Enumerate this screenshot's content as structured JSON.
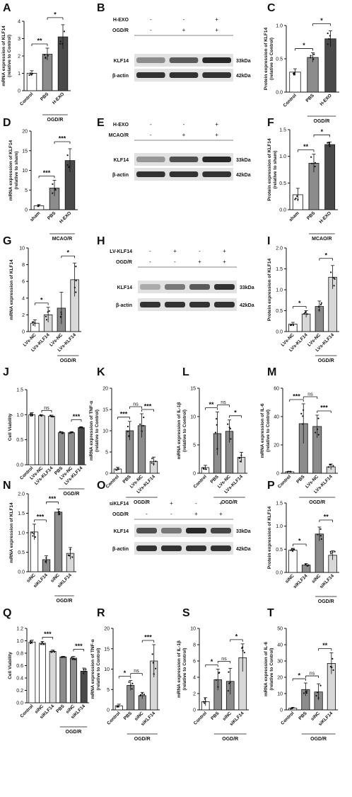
{
  "colors": {
    "black": "#111111",
    "gray": "#8c8c8c",
    "light": "#d8d8d8",
    "dark": "#4a4a4a",
    "white": "#ffffff"
  },
  "chart_data": [
    {
      "panel": "A",
      "type": "bar",
      "ylabel": "mRNA expression of KLF14 (relative to Control)",
      "ylim": [
        0,
        4
      ],
      "yticks": [
        "0",
        "1",
        "2",
        "3",
        "4"
      ],
      "categories": [
        "Control",
        "PBS",
        "H-EXO"
      ],
      "values": [
        1.0,
        2.1,
        3.1
      ],
      "errors": [
        0.15,
        0.35,
        0.7
      ],
      "fills": [
        "white",
        "gray",
        "dark"
      ],
      "sig": [
        {
          "a": 0,
          "b": 1,
          "label": "**"
        },
        {
          "a": 1,
          "b": 2,
          "label": "*"
        }
      ],
      "group_label": "OGD/R",
      "group": [
        1,
        2
      ]
    },
    {
      "panel": "C",
      "type": "bar",
      "ylabel": "Protein expression of KLF14 (relative to Control)",
      "ylim": [
        0,
        1.0
      ],
      "yticks": [
        "0.0",
        "0.5",
        "1.0"
      ],
      "categories": [
        "Control",
        "PBS",
        "H-EXO"
      ],
      "values": [
        0.3,
        0.52,
        0.8
      ],
      "errors": [
        0.05,
        0.07,
        0.12
      ],
      "fills": [
        "white",
        "gray",
        "dark"
      ],
      "sig": [
        {
          "a": 0,
          "b": 1,
          "label": "*"
        },
        {
          "a": 1,
          "b": 2,
          "label": "*"
        }
      ],
      "group_label": "OGD/R",
      "group": [
        1,
        2
      ]
    },
    {
      "panel": "D",
      "type": "bar",
      "ylabel": "mRNA expression of KLF14 (relative to sham)",
      "ylim": [
        0,
        20
      ],
      "yticks": [
        "0",
        "5",
        "10",
        "15",
        "20"
      ],
      "categories": [
        "sham",
        "PBS",
        "H-EXO"
      ],
      "values": [
        1.0,
        5.5,
        12.5
      ],
      "errors": [
        0.3,
        2.0,
        3.0
      ],
      "fills": [
        "white",
        "gray",
        "dark"
      ],
      "sig": [
        {
          "a": 0,
          "b": 1,
          "label": "***"
        },
        {
          "a": 1,
          "b": 2,
          "label": "***"
        }
      ],
      "group_label": "MCAO/R",
      "group": [
        1,
        2
      ]
    },
    {
      "panel": "F",
      "type": "bar",
      "ylabel": "Protein expression of KLF14 (relative to sham)",
      "ylim": [
        0,
        1.5
      ],
      "yticks": [
        "0.0",
        "0.5",
        "1.0",
        "1.5"
      ],
      "categories": [
        "sham",
        "PBS",
        "H-EXO"
      ],
      "values": [
        0.28,
        0.87,
        1.22
      ],
      "errors": [
        0.12,
        0.17,
        0.05
      ],
      "fills": [
        "white",
        "gray",
        "dark"
      ],
      "sig": [
        {
          "a": 0,
          "b": 1,
          "label": "**"
        },
        {
          "a": 1,
          "b": 2,
          "label": "*"
        }
      ],
      "group_label": "MCAO/R",
      "group": [
        1,
        2
      ]
    },
    {
      "panel": "G",
      "type": "bar",
      "ylabel": "mRNA expression of KLF14",
      "ylim": [
        0,
        10
      ],
      "yticks": [
        "0",
        "2",
        "4",
        "6",
        "8",
        "10"
      ],
      "categories": [
        "LVs-NC",
        "LVs-KLF14",
        "LVs-NC",
        "LVs-KLF14"
      ],
      "values": [
        1.0,
        2.0,
        2.8,
        6.2
      ],
      "errors": [
        0.4,
        0.9,
        1.9,
        2.0
      ],
      "fills": [
        "white",
        "light",
        "gray",
        "light"
      ],
      "sig": [
        {
          "a": 0,
          "b": 1,
          "label": "*"
        },
        {
          "a": 2,
          "b": 3,
          "label": "*"
        }
      ],
      "group_label": "OGD/R",
      "group": [
        2,
        3
      ]
    },
    {
      "panel": "I",
      "type": "bar",
      "ylabel": "Protein expression of KLF14",
      "ylim": [
        0,
        2.0
      ],
      "yticks": [
        "0.0",
        "0.5",
        "1.0",
        "1.5",
        "2.0"
      ],
      "categories": [
        "LVs-NC",
        "LVs-KLF14",
        "LVs-NC",
        "LVs-KLF14"
      ],
      "values": [
        0.18,
        0.42,
        0.6,
        1.3
      ],
      "errors": [
        0.04,
        0.08,
        0.13,
        0.28
      ],
      "fills": [
        "white",
        "light",
        "gray",
        "light"
      ],
      "sig": [
        {
          "a": 0,
          "b": 1,
          "label": "*"
        },
        {
          "a": 2,
          "b": 3,
          "label": "*"
        }
      ],
      "group_label": "OGD/R",
      "group": [
        2,
        3
      ]
    },
    {
      "panel": "J",
      "type": "bar",
      "ylabel": "Cell Viability",
      "ylim": [
        0,
        1.5
      ],
      "yticks": [
        "0.0",
        "0.5",
        "1.0",
        "1.5"
      ],
      "categories": [
        "Control",
        "LVs-NC",
        "LVs-KLF14",
        "PBS",
        "LVs-NC",
        "LVs-KLF14"
      ],
      "values": [
        1.0,
        0.98,
        0.97,
        0.64,
        0.64,
        0.74
      ],
      "errors": [
        0.04,
        0.02,
        0.02,
        0.02,
        0.02,
        0.02
      ],
      "fills": [
        "white",
        "light",
        "light",
        "gray",
        "gray",
        "dark"
      ],
      "sig": [
        {
          "a": 1,
          "b": 2,
          "label": "ns"
        },
        {
          "a": 4,
          "b": 5,
          "label": "***"
        }
      ],
      "group_label": "OGD/R",
      "group": [
        3,
        5
      ]
    },
    {
      "panel": "K",
      "type": "bar",
      "ylabel": "mRNA expression of TNF-α (relative to Control)",
      "ylim": [
        0,
        20
      ],
      "yticks": [
        "0",
        "5",
        "10",
        "15",
        "20"
      ],
      "categories": [
        "Control",
        "PBS",
        "LVs-NC",
        "LVs-KLF14"
      ],
      "values": [
        1.0,
        10.0,
        11.2,
        2.8
      ],
      "errors": [
        0.4,
        2.2,
        2.8,
        1.0
      ],
      "fills": [
        "white",
        "gray",
        "gray",
        "light"
      ],
      "sig": [
        {
          "a": 0,
          "b": 1,
          "label": "***"
        },
        {
          "a": 1,
          "b": 2,
          "label": "ns"
        },
        {
          "a": 2,
          "b": 3,
          "label": "***"
        }
      ],
      "group_label": "OGD/R",
      "group": [
        1,
        3
      ]
    },
    {
      "panel": "L",
      "type": "bar",
      "ylabel": "mRNA expression of IL-1β (relative to Control)",
      "ylim": [
        0,
        15
      ],
      "yticks": [
        "0",
        "5",
        "10",
        "15"
      ],
      "categories": [
        "Control",
        "PBS",
        "LVs-NC",
        "LVs-KLF14"
      ],
      "values": [
        1.0,
        7.0,
        7.4,
        2.8
      ],
      "errors": [
        0.4,
        3.8,
        2.0,
        0.9
      ],
      "fills": [
        "white",
        "gray",
        "gray",
        "light"
      ],
      "sig": [
        {
          "a": 0,
          "b": 1,
          "label": "**"
        },
        {
          "a": 1,
          "b": 2,
          "label": "ns"
        },
        {
          "a": 2,
          "b": 3,
          "label": "*"
        }
      ],
      "group_label": "OGD/R",
      "group": [
        1,
        3
      ]
    },
    {
      "panel": "M",
      "type": "bar",
      "ylabel": "mRNA expression of IL-6 (relative to Control)",
      "ylim": [
        0,
        60
      ],
      "yticks": [
        "0",
        "20",
        "40",
        "60"
      ],
      "categories": [
        "Control",
        "PBS",
        "LVs-NC",
        "LVs-KLF14"
      ],
      "values": [
        1.0,
        35.0,
        33.0,
        4.5
      ],
      "errors": [
        0.4,
        14.0,
        8.0,
        2.0
      ],
      "fills": [
        "white",
        "gray",
        "gray",
        "light"
      ],
      "sig": [
        {
          "a": 0,
          "b": 1,
          "label": "***"
        },
        {
          "a": 1,
          "b": 2,
          "label": "ns"
        },
        {
          "a": 2,
          "b": 3,
          "label": "***"
        }
      ],
      "group_label": "OGD/R",
      "group": [
        1,
        3
      ]
    },
    {
      "panel": "N",
      "type": "bar",
      "ylabel": "mRNA expression of KLF14",
      "ylim": [
        0,
        2.0
      ],
      "yticks": [
        "0.0",
        "0.5",
        "1.0",
        "1.5",
        "2.0"
      ],
      "categories": [
        "siNC",
        "siKLF14",
        "siNC",
        "siKLF14"
      ],
      "values": [
        1.02,
        0.31,
        1.53,
        0.47
      ],
      "errors": [
        0.2,
        0.1,
        0.08,
        0.15
      ],
      "fills": [
        "white",
        "gray",
        "gray",
        "light"
      ],
      "sig": [
        {
          "a": 0,
          "b": 1,
          "label": "***"
        },
        {
          "a": 1,
          "b": 2,
          "label": "***"
        }
      ],
      "group_label": "OGD/R",
      "group": [
        2,
        3
      ]
    },
    {
      "panel": "P",
      "type": "bar",
      "ylabel": "Protein expression of KLF14",
      "ylim": [
        0,
        1.5
      ],
      "yticks": [
        "0.0",
        "0.5",
        "1.0",
        "1.5"
      ],
      "categories": [
        "siNC",
        "siKLF14",
        "siNC",
        "siKLF14"
      ],
      "values": [
        0.48,
        0.16,
        0.83,
        0.37
      ],
      "errors": [
        0.04,
        0.03,
        0.15,
        0.1
      ],
      "fills": [
        "white",
        "gray",
        "gray",
        "light"
      ],
      "sig": [
        {
          "a": 0,
          "b": 1,
          "label": "*"
        },
        {
          "a": 2,
          "b": 3,
          "label": "**"
        }
      ],
      "group_label": "OGD/R",
      "group": [
        2,
        3
      ]
    },
    {
      "panel": "Q",
      "type": "bar",
      "ylabel": "Cell Viability",
      "ylim": [
        0,
        1.2
      ],
      "yticks": [
        "0.0",
        "0.2",
        "0.4",
        "0.6",
        "0.8",
        "1.0",
        "1.2"
      ],
      "categories": [
        "Control",
        "siNC",
        "siKLF14",
        "PBS",
        "siNC",
        "siKLF14"
      ],
      "values": [
        0.98,
        0.96,
        0.83,
        0.74,
        0.72,
        0.51
      ],
      "errors": [
        0.03,
        0.03,
        0.02,
        0.01,
        0.03,
        0.05
      ],
      "fills": [
        "white",
        "white",
        "light",
        "gray",
        "gray",
        "dark"
      ],
      "sig": [
        {
          "a": 1,
          "b": 2,
          "label": "***"
        },
        {
          "a": 4,
          "b": 5,
          "label": "***"
        }
      ],
      "group_label": "OGD/R",
      "group": [
        3,
        5
      ]
    },
    {
      "panel": "R",
      "type": "bar",
      "ylabel": "mRNA expression of TNF-α (relative to Control)",
      "ylim": [
        0,
        20
      ],
      "yticks": [
        "0",
        "5",
        "10",
        "15",
        "20"
      ],
      "categories": [
        "Control",
        "PBS",
        "siNC",
        "siKLF14"
      ],
      "values": [
        1.0,
        6.0,
        3.5,
        12.0
      ],
      "errors": [
        0.4,
        1.2,
        0.8,
        4.0
      ],
      "fills": [
        "white",
        "gray",
        "gray",
        "light"
      ],
      "sig": [
        {
          "a": 0,
          "b": 1,
          "label": "*"
        },
        {
          "a": 1,
          "b": 2,
          "label": "ns"
        },
        {
          "a": 2,
          "b": 3,
          "label": "***"
        }
      ],
      "group_label": "OGD/R",
      "group": [
        1,
        3
      ]
    },
    {
      "panel": "S",
      "type": "bar",
      "ylabel": "mRNA expression of IL-1β (relative to Control)",
      "ylim": [
        0,
        10
      ],
      "yticks": [
        "0",
        "2",
        "4",
        "6",
        "8",
        "10"
      ],
      "categories": [
        "Control",
        "PBS",
        "siNC",
        "siKLF14"
      ],
      "values": [
        1.0,
        3.7,
        3.5,
        6.4
      ],
      "errors": [
        0.5,
        1.3,
        1.6,
        1.7
      ],
      "fills": [
        "white",
        "gray",
        "gray",
        "light"
      ],
      "sig": [
        {
          "a": 0,
          "b": 1,
          "label": "*"
        },
        {
          "a": 1,
          "b": 2,
          "label": "ns"
        },
        {
          "a": 2,
          "b": 3,
          "label": "*"
        }
      ],
      "group_label": "OGD/R",
      "group": [
        1,
        3
      ]
    },
    {
      "panel": "T",
      "type": "bar",
      "ylabel": "mRNA expression of IL-6 (relative to Control)",
      "ylim": [
        0,
        50
      ],
      "yticks": [
        "0",
        "10",
        "20",
        "30",
        "40",
        "50"
      ],
      "categories": [
        "Control",
        "PBS",
        "siNC",
        "siKLF14"
      ],
      "values": [
        1.0,
        12.5,
        11.0,
        28.5
      ],
      "errors": [
        0.5,
        4.0,
        5.0,
        6.5
      ],
      "fills": [
        "white",
        "gray",
        "gray",
        "light"
      ],
      "sig": [
        {
          "a": 0,
          "b": 1,
          "label": "*"
        },
        {
          "a": 1,
          "b": 2,
          "label": "ns"
        },
        {
          "a": 2,
          "b": 3,
          "label": "**"
        }
      ],
      "group_label": "OGD/R",
      "group": [
        1,
        3
      ]
    }
  ],
  "blots": [
    {
      "panel": "B",
      "treatments": [
        {
          "name": "H-EXO",
          "marks": [
            "-",
            "-",
            "+"
          ]
        },
        {
          "name": "OGD/R",
          "marks": [
            "-",
            "+",
            "+"
          ]
        }
      ],
      "rows": [
        {
          "label": "KLF14",
          "size": "33kDa",
          "intensity": [
            0.45,
            0.7,
            0.95
          ]
        },
        {
          "label": "β-actin",
          "size": "42kDa",
          "intensity": [
            0.9,
            0.9,
            0.9
          ]
        }
      ]
    },
    {
      "panel": "E",
      "treatments": [
        {
          "name": "H-EXO",
          "marks": [
            "-",
            "-",
            "+"
          ]
        },
        {
          "name": "MCAO/R",
          "marks": [
            "-",
            "+",
            "+"
          ]
        }
      ],
      "rows": [
        {
          "label": "KLF14",
          "size": "33kDa",
          "intensity": [
            0.4,
            0.75,
            0.95
          ]
        },
        {
          "label": "β-actin",
          "size": "42kDa",
          "intensity": [
            0.9,
            0.9,
            0.9
          ]
        }
      ]
    },
    {
      "panel": "H",
      "treatments": [
        {
          "name": "LV-KLF14",
          "marks": [
            "-",
            "+",
            "-",
            "+"
          ]
        },
        {
          "name": "OGD/R",
          "marks": [
            "-",
            "-",
            "+",
            "+"
          ]
        }
      ],
      "rows": [
        {
          "label": "KLF14",
          "size": "33kDa",
          "intensity": [
            0.3,
            0.55,
            0.7,
            0.9
          ]
        },
        {
          "label": "β-actin",
          "size": "42kDa",
          "intensity": [
            0.9,
            0.9,
            0.9,
            0.9
          ]
        }
      ]
    },
    {
      "panel": "O",
      "treatments": [
        {
          "name": "siKLF14",
          "marks": [
            "-",
            "+",
            "-",
            "+"
          ]
        },
        {
          "name": "OGD/R",
          "marks": [
            "-",
            "-",
            "+",
            "+"
          ]
        }
      ],
      "rows": [
        {
          "label": "KLF14",
          "size": "33kDa",
          "intensity": [
            0.75,
            0.55,
            0.95,
            0.8
          ]
        },
        {
          "label": "β-actin",
          "size": "42kDa",
          "intensity": [
            0.9,
            0.9,
            0.9,
            0.9
          ]
        }
      ]
    }
  ]
}
